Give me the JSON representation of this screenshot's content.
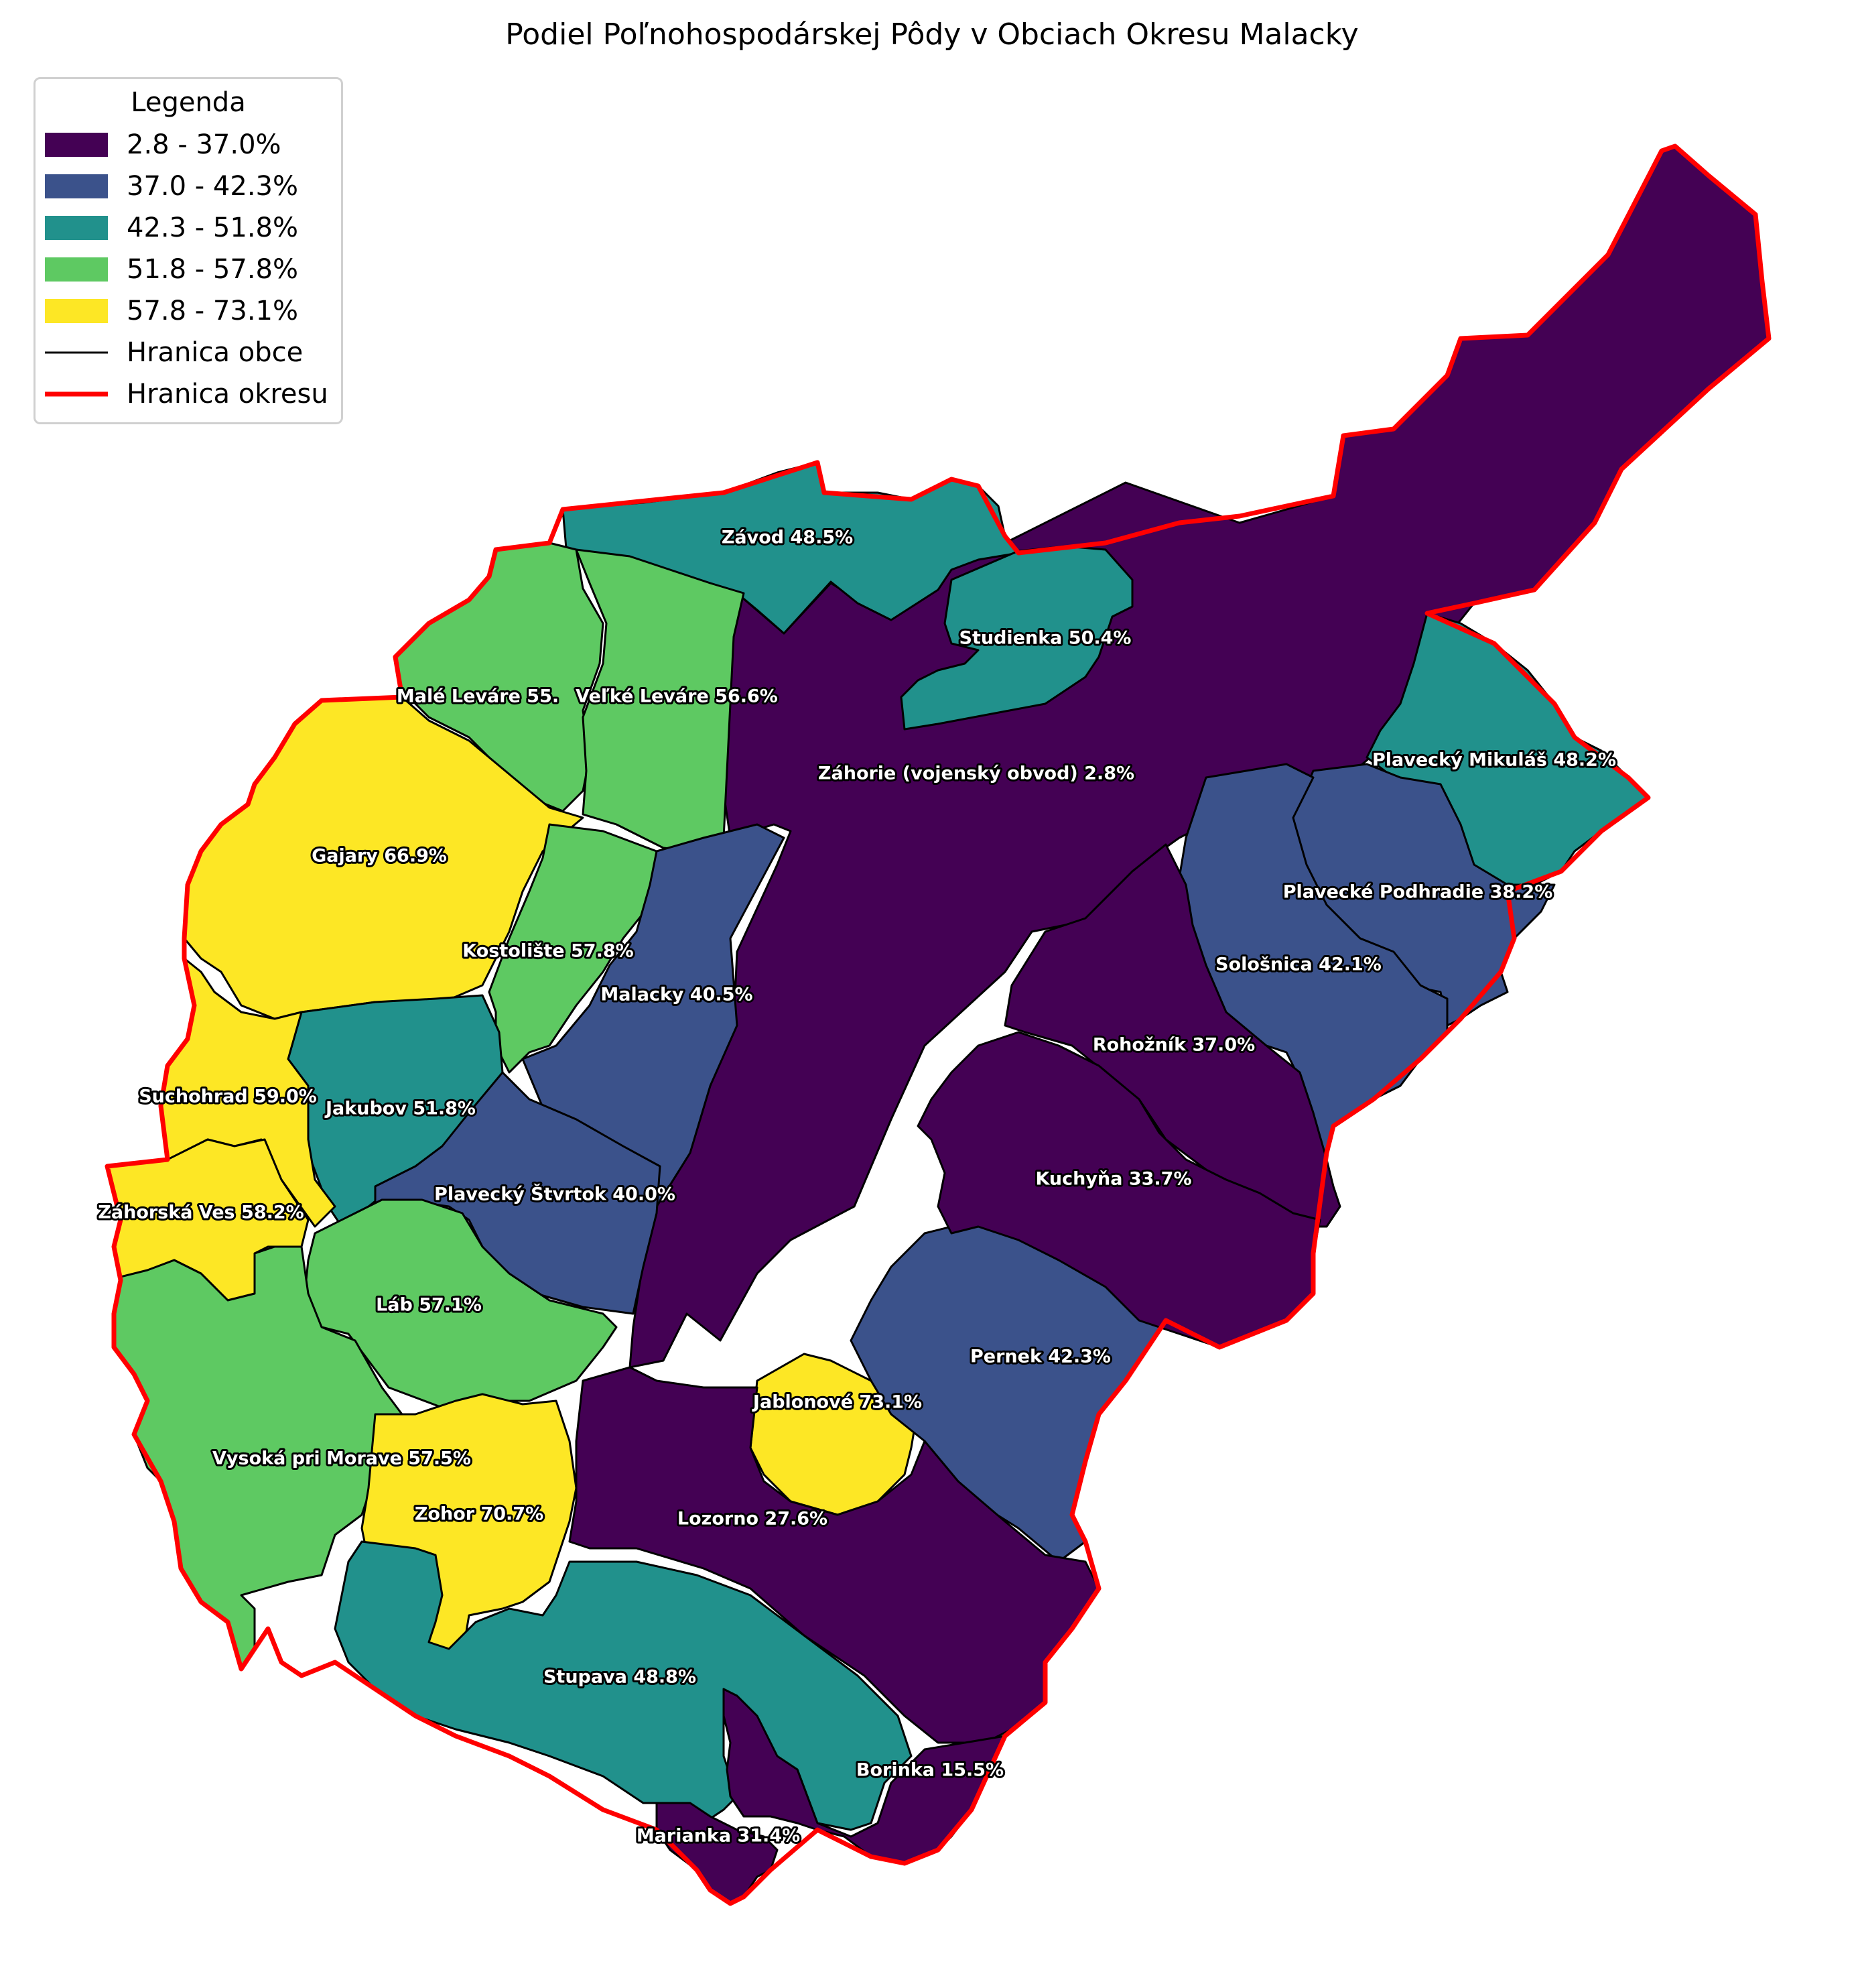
{
  "title": "Podiel Poľnohospodárskej Pôdy v Obciach Okresu Malacky",
  "legend": {
    "title": "Legenda",
    "items": [
      {
        "label": "2.8 - 37.0%",
        "color": "#440154",
        "kind": "fill"
      },
      {
        "label": "37.0 - 42.3%",
        "color": "#3b528b",
        "kind": "fill"
      },
      {
        "label": "42.3 - 51.8%",
        "color": "#21918c",
        "kind": "fill"
      },
      {
        "label": "51.8 - 57.8%",
        "color": "#5ec962",
        "kind": "fill"
      },
      {
        "label": "57.8 - 73.1%",
        "color": "#fde725",
        "kind": "fill"
      },
      {
        "label": "Hranica obce",
        "color": "#000000",
        "kind": "line"
      },
      {
        "label": "Hranica okresu",
        "color": "#ff0000",
        "kind": "line"
      }
    ]
  },
  "chart_data": {
    "type": "choropleth",
    "title": "Podiel Poľnohospodárskej Pôdy v Obciach Okresu Malacky",
    "legend_placement": "top-left",
    "classes": [
      "2.8 - 37.0%",
      "37.0 - 42.3%",
      "42.3 - 51.8%",
      "51.8 - 57.8%",
      "57.8 - 73.1%"
    ],
    "regions": [
      {
        "name": "Závod",
        "label": "Závod 48.5%",
        "value": 48.5,
        "class": 2
      },
      {
        "name": "Studienka",
        "label": "Studienka 50.4%",
        "value": 50.4,
        "class": 2
      },
      {
        "name": "Malé Leváre",
        "label": "Malé Leváre 55.",
        "value": 55.0,
        "class": 3
      },
      {
        "name": "Veľké Leváre",
        "label": "Veľké Leváre 56.6%",
        "value": 56.6,
        "class": 3
      },
      {
        "name": "Záhorie (vojenský obvod)",
        "label": "Záhorie (vojenský obvod) 2.8%",
        "value": 2.8,
        "class": 0
      },
      {
        "name": "Plavecký Mikuláš",
        "label": "Plavecký Mikuláš 48.2%",
        "value": 48.2,
        "class": 2
      },
      {
        "name": "Gajary",
        "label": "Gajary 66.9%",
        "value": 66.9,
        "class": 4
      },
      {
        "name": "Plavecké Podhradie",
        "label": "Plavecké Podhradie 38.2%",
        "value": 38.2,
        "class": 1
      },
      {
        "name": "Kostolište",
        "label": "Kostolište 57.8%",
        "value": 57.8,
        "class": 3
      },
      {
        "name": "Sološnica",
        "label": "Sološnica 42.1%",
        "value": 42.1,
        "class": 1
      },
      {
        "name": "Malacky",
        "label": "Malacky 40.5%",
        "value": 40.5,
        "class": 1
      },
      {
        "name": "Rohožník",
        "label": "Rohožník 37.0%",
        "value": 37.0,
        "class": 0
      },
      {
        "name": "Suchohrad",
        "label": "Suchohrad 59.0%",
        "value": 59.0,
        "class": 4
      },
      {
        "name": "Jakubov",
        "label": "Jakubov 51.8%",
        "value": 51.8,
        "class": 2
      },
      {
        "name": "Kuchyňa",
        "label": "Kuchyňa 33.7%",
        "value": 33.7,
        "class": 0
      },
      {
        "name": "Plavecký Štvrtok",
        "label": "Plavecký Štvrtok 40.0%",
        "value": 40.0,
        "class": 1
      },
      {
        "name": "Záhorská Ves",
        "label": "Záhorská Ves 58.2%",
        "value": 58.2,
        "class": 4
      },
      {
        "name": "Láb",
        "label": "Láb 57.1%",
        "value": 57.1,
        "class": 3
      },
      {
        "name": "Pernek",
        "label": "Pernek 42.3%",
        "value": 42.3,
        "class": 1
      },
      {
        "name": "Jablonové",
        "label": "Jablonové 73.1%",
        "value": 73.1,
        "class": 4
      },
      {
        "name": "Vysoká pri Morave",
        "label": "Vysoká pri Morave 57.5%",
        "value": 57.5,
        "class": 3
      },
      {
        "name": "Zohor",
        "label": "Zohor 70.7%",
        "value": 70.7,
        "class": 4
      },
      {
        "name": "Lozorno",
        "label": "Lozorno 27.6%",
        "value": 27.6,
        "class": 0
      },
      {
        "name": "Stupava",
        "label": "Stupava 48.8%",
        "value": 48.8,
        "class": 2
      },
      {
        "name": "Borinka",
        "label": "Borinka 15.5%",
        "value": 15.5,
        "class": 0
      },
      {
        "name": "Marianka",
        "label": "Marianka 31.4%",
        "value": 31.4,
        "class": 0
      }
    ]
  }
}
